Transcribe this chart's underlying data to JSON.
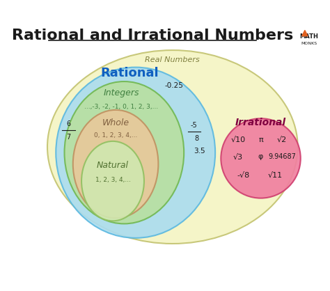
{
  "title": "Rational and Irrational Numbers",
  "title_fontsize": 16,
  "title_color": "#1a1a1a",
  "bg_color": "#ffffff",
  "real_numbers_label": "Real Numbers",
  "real_color": "#f5f5c8",
  "real_edge_color": "#c8c87a",
  "rational_label": "Rational",
  "rational_color": "#aadcf0",
  "rational_edge_color": "#5ab8e0",
  "integers_label": "Integers",
  "integers_color": "#b8e0a0",
  "integers_edge_color": "#70b850",
  "whole_label": "Whole",
  "whole_color": "#e8c89a",
  "whole_edge_color": "#c09060",
  "natural_label": "Natural",
  "natural_color": "#d0e8b0",
  "natural_edge_color": "#90c060",
  "irrational_label": "Irrational",
  "irrational_color": "#f080a0",
  "irrational_edge_color": "#d04070",
  "rational_examples": [
    "-0.25",
    "6/7",
    "-5/8",
    "3.5"
  ],
  "integers_examples": "...,-3, -2, -1, 0, 1, 2, 3,...",
  "whole_examples": "0, 1, 2, 3, 4,...",
  "natural_examples": "1, 2, 3, 4,...",
  "irrational_examples_row1": [
    "√10",
    "π",
    "√2"
  ],
  "irrational_examples_row2": [
    "√3",
    "φ",
    "9.94687"
  ],
  "irrational_examples_row3": [
    "-√8",
    "√11"
  ],
  "label_color_rational": "#1060c0",
  "label_color_integers": "#408040",
  "label_color_whole": "#806040",
  "label_color_natural": "#507030",
  "label_color_irrational": "#800040",
  "label_color_real": "#808040"
}
